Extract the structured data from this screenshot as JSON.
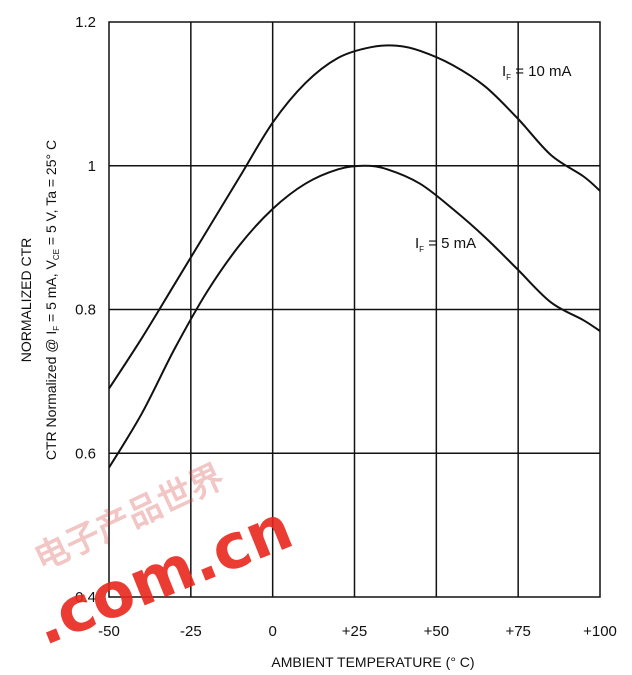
{
  "chart_data": {
    "type": "line",
    "title": "",
    "xlabel": "AMBIENT TEMPERATURE (° C)",
    "ylabel": "NORMALIZED CTR",
    "ylabel_sub": {
      "prefix": "CTR Normalized @ I",
      "if_sub": "F",
      "mid": " = 5 mA, V",
      "vce_sub": "CE",
      "suffix": " = 5 V, Ta = 25° C"
    },
    "xlim": [
      -50,
      100
    ],
    "ylim": [
      0.4,
      1.2
    ],
    "xticks": [
      -50,
      -25,
      0,
      25,
      50,
      75,
      100
    ],
    "xtick_labels": [
      "-50",
      "-25",
      "0",
      "+25",
      "+50",
      "+75",
      "+100"
    ],
    "yticks": [
      0.4,
      0.6,
      0.8,
      1.0,
      1.2
    ],
    "ytick_labels": [
      "0.4",
      "0.6",
      "0.8",
      "1",
      "1.2"
    ],
    "grid": true,
    "series": [
      {
        "name": "IF = 10 mA",
        "label_parts": {
          "main": "I",
          "sub": "F",
          "rest": " = 10 mA"
        },
        "x": [
          -50,
          -40,
          -30,
          -20,
          -10,
          0,
          10,
          20,
          30,
          38,
          45,
          55,
          65,
          75,
          85,
          95,
          100
        ],
        "y": [
          0.69,
          0.76,
          0.835,
          0.91,
          0.985,
          1.06,
          1.115,
          1.15,
          1.165,
          1.167,
          1.16,
          1.14,
          1.11,
          1.065,
          1.015,
          0.985,
          0.965
        ]
      },
      {
        "name": "IF = 5 mA",
        "label_parts": {
          "main": "I",
          "sub": "F",
          "rest": " = 5 mA"
        },
        "x": [
          -50,
          -40,
          -30,
          -20,
          -10,
          0,
          10,
          20,
          28,
          35,
          45,
          55,
          65,
          75,
          85,
          95,
          100
        ],
        "y": [
          0.58,
          0.655,
          0.745,
          0.825,
          0.89,
          0.94,
          0.975,
          0.995,
          1.0,
          0.995,
          0.975,
          0.94,
          0.9,
          0.855,
          0.81,
          0.785,
          0.77
        ]
      }
    ]
  },
  "watermark": {
    "chinese": "电子产品世界",
    "domain": ".com.cn",
    "color": "#e8281e"
  }
}
